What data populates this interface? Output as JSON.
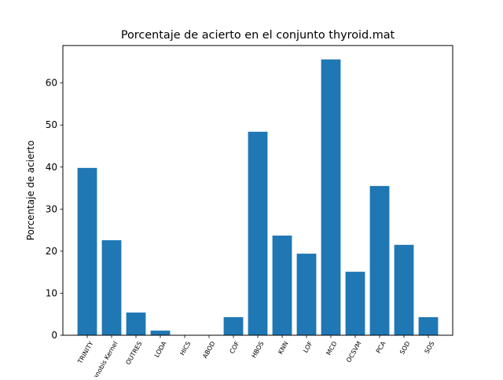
{
  "chart_data": {
    "type": "bar",
    "title": "Porcentaje de acierto en el conjunto thyroid.mat",
    "xlabel": "",
    "ylabel": "Porcentaje de acierto",
    "categories": [
      "TRINITY",
      "Mahalanobis Kernel",
      "OUTRES",
      "LODA",
      "HICS",
      "ABOD",
      "COF",
      "HBOS",
      "KNN",
      "LOF",
      "MCD",
      "OCSVM",
      "PCA",
      "SOD",
      "SOS"
    ],
    "values": [
      39.8,
      22.6,
      5.4,
      1.1,
      0,
      0,
      4.3,
      48.4,
      23.7,
      19.4,
      65.6,
      15.1,
      35.5,
      21.5,
      4.3
    ],
    "ylim": [
      0,
      68.9
    ],
    "yticks": [
      0,
      10,
      20,
      30,
      40,
      50,
      60
    ],
    "bar_color": "#1f77b4",
    "grid": false,
    "legend": "none"
  }
}
